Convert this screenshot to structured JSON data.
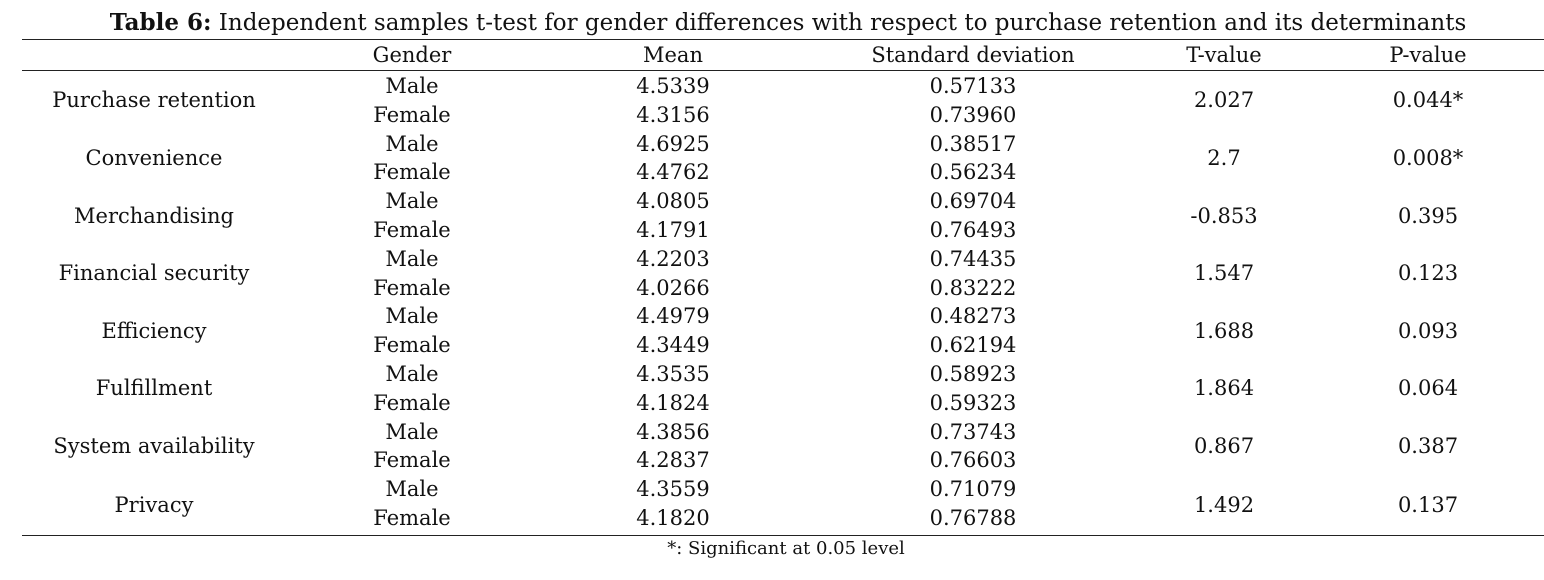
{
  "caption": {
    "label": "Table 6:",
    "text": " Independent samples t-test for gender differences with respect to purchase retention and its determinants"
  },
  "headers": {
    "blank": "",
    "gender": "Gender",
    "mean": "Mean",
    "sd": "Standard deviation",
    "t": "T-value",
    "p": "P-value"
  },
  "rows": [
    {
      "label": "Purchase retention",
      "male": {
        "g": "Male",
        "mean": "4.5339",
        "sd": "0.57133"
      },
      "female": {
        "g": "Female",
        "mean": "4.3156",
        "sd": "0.73960"
      },
      "t": "2.027",
      "p": "0.044*"
    },
    {
      "label": "Convenience",
      "male": {
        "g": "Male",
        "mean": "4.6925",
        "sd": "0.38517"
      },
      "female": {
        "g": "Female",
        "mean": "4.4762",
        "sd": "0.56234"
      },
      "t": "2.7",
      "p": "0.008*"
    },
    {
      "label": "Merchandising",
      "male": {
        "g": "Male",
        "mean": "4.0805",
        "sd": "0.69704"
      },
      "female": {
        "g": "Female",
        "mean": "4.1791",
        "sd": "0.76493"
      },
      "t": "-0.853",
      "p": "0.395"
    },
    {
      "label": "Financial security",
      "male": {
        "g": "Male",
        "mean": "4.2203",
        "sd": "0.74435"
      },
      "female": {
        "g": "Female",
        "mean": "4.0266",
        "sd": "0.83222"
      },
      "t": "1.547",
      "p": "0.123"
    },
    {
      "label": "Efficiency",
      "male": {
        "g": "Male",
        "mean": "4.4979",
        "sd": "0.48273"
      },
      "female": {
        "g": "Female",
        "mean": "4.3449",
        "sd": "0.62194"
      },
      "t": "1.688",
      "p": "0.093"
    },
    {
      "label": "Fulfillment",
      "male": {
        "g": "Male",
        "mean": "4.3535",
        "sd": "0.58923"
      },
      "female": {
        "g": "Female",
        "mean": "4.1824",
        "sd": "0.59323"
      },
      "t": "1.864",
      "p": "0.064"
    },
    {
      "label": "System availability",
      "male": {
        "g": "Male",
        "mean": "4.3856",
        "sd": "0.73743"
      },
      "female": {
        "g": "Female",
        "mean": "4.2837",
        "sd": "0.76603"
      },
      "t": "0.867",
      "p": "0.387"
    },
    {
      "label": "Privacy",
      "male": {
        "g": "Male",
        "mean": "4.3559",
        "sd": "0.71079"
      },
      "female": {
        "g": "Female",
        "mean": "4.1820",
        "sd": "0.76788"
      },
      "t": "1.492",
      "p": "0.137"
    }
  ],
  "footnote": "*: Significant at 0.05 level"
}
